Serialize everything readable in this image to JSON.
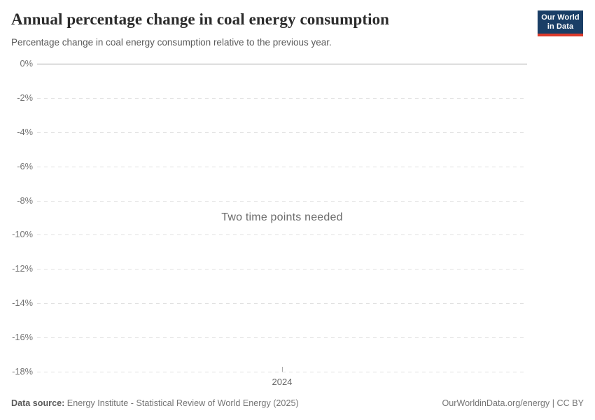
{
  "header": {
    "title": "Annual percentage change in coal energy consumption",
    "subtitle": "Percentage change in coal energy consumption relative to the previous year."
  },
  "logo": {
    "line1": "Our World",
    "line2": "in Data"
  },
  "chart_data": {
    "type": "line",
    "title": "Annual percentage change in coal energy consumption",
    "subtitle": "Percentage change in coal energy consumption relative to the previous year.",
    "status_message": "Two time points needed",
    "series": [],
    "x": [
      2024
    ],
    "x_tick_labels": [
      "2024"
    ],
    "y_tick_labels": [
      "0%",
      "-2%",
      "-4%",
      "-6%",
      "-8%",
      "-10%",
      "-12%",
      "-14%",
      "-16%",
      "-18%"
    ],
    "ylim": [
      -18,
      0
    ],
    "y_tick_step": 2,
    "grid": "horizontal-dashed",
    "legend_position": "none"
  },
  "colors": {
    "logo_bg": "#1a3e66",
    "logo_stripe": "#dc3a2b",
    "zero_line": "#a3a3a3",
    "gridline": "#e1e1e1",
    "muted_text": "#6b6b6b"
  },
  "footer": {
    "source_label": "Data source:",
    "source_text": " Energy Institute - Statistical Review of World Energy (2025)",
    "license_text": "OurWorldinData.org/energy | CC BY"
  }
}
